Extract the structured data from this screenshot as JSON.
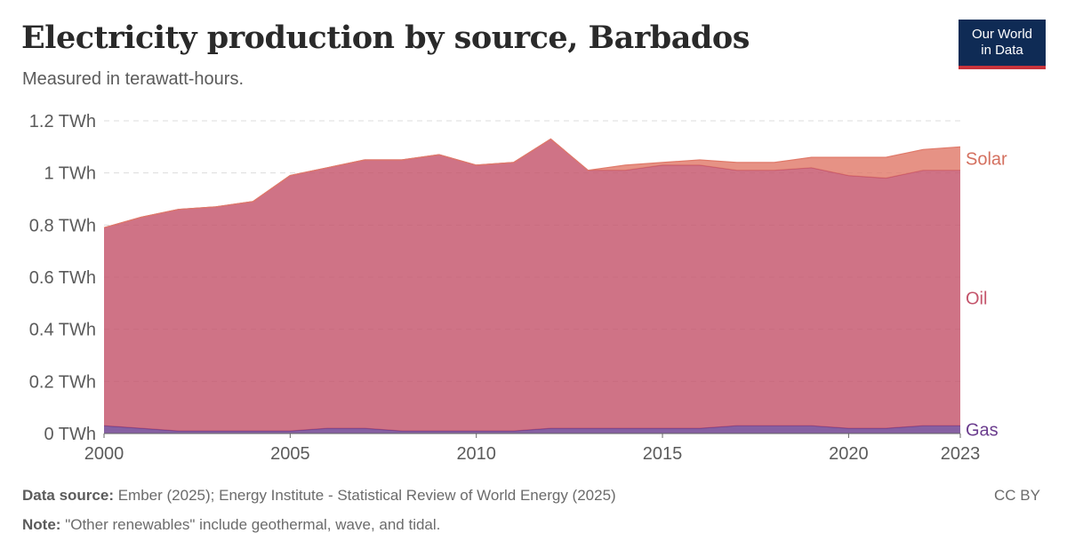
{
  "header": {
    "title": "Electricity production by source, Barbados",
    "subtitle": "Measured in terawatt-hours."
  },
  "logo": {
    "line1": "Our World",
    "line2": "in Data"
  },
  "footer": {
    "source_label": "Data source:",
    "source_text": "Ember (2025); Energy Institute - Statistical Review of World Energy (2025)",
    "note_label": "Note:",
    "note_text": "\"Other renewables\" include geothermal, wave, and tidal.",
    "license": "CC BY"
  },
  "chart_data": {
    "type": "area",
    "stacked": true,
    "unit": "TWh",
    "x": [
      2000,
      2001,
      2002,
      2003,
      2004,
      2005,
      2006,
      2007,
      2008,
      2009,
      2010,
      2011,
      2012,
      2013,
      2014,
      2015,
      2016,
      2017,
      2018,
      2019,
      2020,
      2021,
      2022,
      2023
    ],
    "xlim": [
      2000,
      2023
    ],
    "xticks": [
      "2000",
      "2005",
      "2010",
      "2015",
      "2020",
      "2023"
    ],
    "ylim": [
      0,
      1.2
    ],
    "yticks": [
      "0 TWh",
      "0.2 TWh",
      "0.4 TWh",
      "0.6 TWh",
      "0.8 TWh",
      "1 TWh",
      "1.2 TWh"
    ],
    "grid": true,
    "legend": "inline-right",
    "series": [
      {
        "name": "Gas",
        "color": "#6b3d8e",
        "values": [
          0.03,
          0.02,
          0.01,
          0.01,
          0.01,
          0.01,
          0.02,
          0.02,
          0.01,
          0.01,
          0.01,
          0.01,
          0.02,
          0.02,
          0.02,
          0.02,
          0.02,
          0.03,
          0.03,
          0.03,
          0.02,
          0.02,
          0.03,
          0.03
        ]
      },
      {
        "name": "Oil",
        "color": "#c4546b",
        "values": [
          0.76,
          0.81,
          0.85,
          0.86,
          0.88,
          0.98,
          1.0,
          1.03,
          1.04,
          1.06,
          1.02,
          1.03,
          1.11,
          0.99,
          0.99,
          1.01,
          1.01,
          0.98,
          0.98,
          0.99,
          0.97,
          0.96,
          0.98,
          0.98
        ]
      },
      {
        "name": "Solar",
        "color": "#e07a6a",
        "values": [
          0,
          0,
          0,
          0,
          0,
          0,
          0,
          0,
          0,
          0,
          0,
          0,
          0,
          0,
          0.02,
          0.01,
          0.02,
          0.03,
          0.03,
          0.04,
          0.07,
          0.08,
          0.08,
          0.09
        ]
      }
    ]
  }
}
